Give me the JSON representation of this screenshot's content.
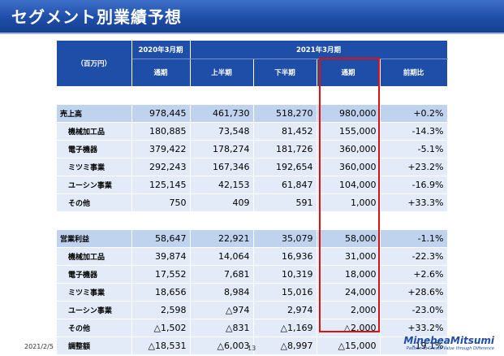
{
  "title": "セグメント別業績予想",
  "header": {
    "unit": "（百万円）",
    "fy2020": "2020年3月期",
    "fy2021": "2021年3月期",
    "full_year": "通期",
    "first_half": "上半期",
    "second_half": "下半期",
    "full_year_2021": "通期",
    "yoy": "前期比"
  },
  "rows": [
    {
      "label": "売上高",
      "level": "main",
      "v": [
        "978,445",
        "461,730",
        "518,270",
        "980,000",
        "+0.2%"
      ]
    },
    {
      "label": "機械加工品",
      "level": "sub",
      "v": [
        "180,885",
        "73,548",
        "81,452",
        "155,000",
        "-14.3%"
      ]
    },
    {
      "label": "電子機器",
      "level": "sub",
      "v": [
        "379,422",
        "178,274",
        "181,726",
        "360,000",
        "-5.1%"
      ]
    },
    {
      "label": "ミツミ事業",
      "level": "sub",
      "v": [
        "292,243",
        "167,346",
        "192,654",
        "360,000",
        "+23.2%"
      ]
    },
    {
      "label": "ユーシン事業",
      "level": "sub",
      "v": [
        "125,145",
        "42,153",
        "61,847",
        "104,000",
        "-16.9%"
      ]
    },
    {
      "label": "その他",
      "level": "sub",
      "v": [
        "750",
        "409",
        "591",
        "1,000",
        "+33.3%"
      ]
    },
    {
      "label": "営業利益",
      "level": "main",
      "v": [
        "58,647",
        "22,921",
        "35,079",
        "58,000",
        "-1.1%"
      ]
    },
    {
      "label": "機械加工品",
      "level": "sub",
      "v": [
        "39,874",
        "14,064",
        "16,936",
        "31,000",
        "-22.3%"
      ]
    },
    {
      "label": "電子機器",
      "level": "sub",
      "v": [
        "17,552",
        "7,681",
        "10,319",
        "18,000",
        "+2.6%"
      ]
    },
    {
      "label": "ミツミ事業",
      "level": "sub",
      "v": [
        "18,656",
        "8,984",
        "15,016",
        "24,000",
        "+28.6%"
      ]
    },
    {
      "label": "ユーシン事業",
      "level": "sub",
      "v": [
        "2,598",
        "△974",
        "2,974",
        "2,000",
        "-23.0%"
      ]
    },
    {
      "label": "その他",
      "level": "sub",
      "v": [
        "△1,502",
        "△831",
        "△1,169",
        "△2,000",
        "+33.2%"
      ]
    },
    {
      "label": "調整額",
      "level": "sub",
      "v": [
        "△18,531",
        "△6,003",
        "△8,997",
        "△15,000",
        "-19.1%"
      ]
    }
  ],
  "footer": {
    "date": "2021/2/5",
    "page": "13",
    "logo": "MinebeaMitsumi",
    "tagline": "Passion to Create Value through Difference"
  }
}
